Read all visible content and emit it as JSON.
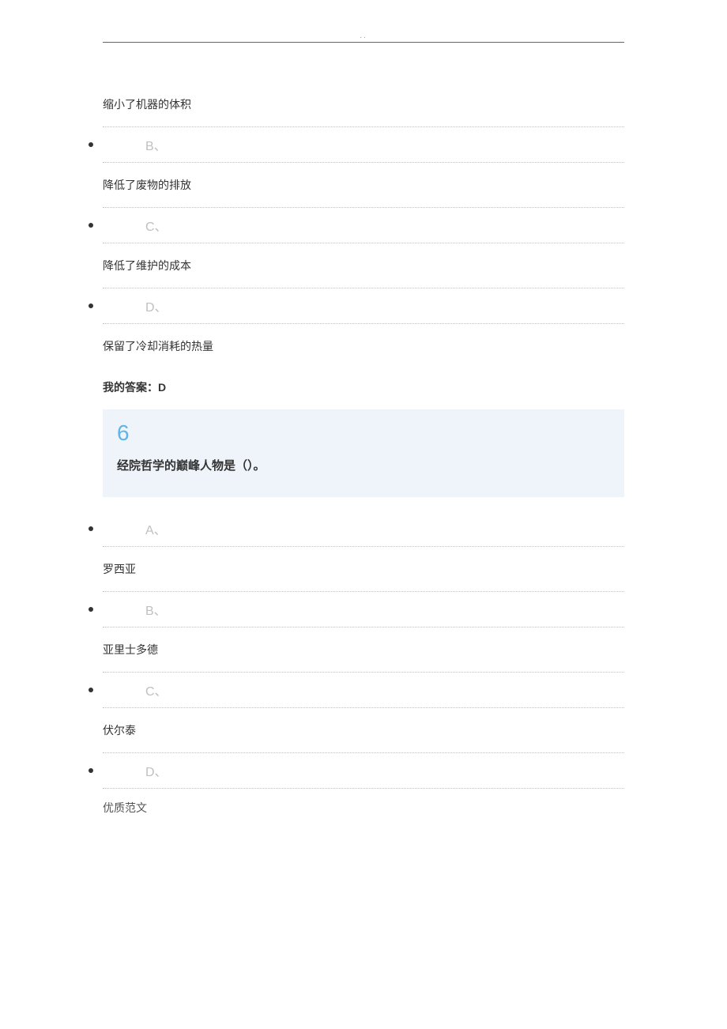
{
  "top_dots": "..",
  "question5": {
    "options": {
      "A": {
        "text": "缩小了机器的体积"
      },
      "B": {
        "letter": "B、",
        "text": "降低了废物的排放"
      },
      "C": {
        "letter": "C、",
        "text": "降低了维护的成本"
      },
      "D": {
        "letter": "D、",
        "text": "保留了冷却消耗的热量"
      }
    },
    "my_answer": "我的答案：D"
  },
  "question6": {
    "number": "6",
    "text": "经院哲学的巅峰人物是（）。",
    "options": {
      "A": {
        "letter": "A、",
        "text": "罗西亚"
      },
      "B": {
        "letter": "B、",
        "text": "亚里士多德"
      },
      "C": {
        "letter": "C、",
        "text": "伏尔泰"
      },
      "D": {
        "letter": "D、"
      }
    }
  },
  "footer": "优质范文",
  "colors": {
    "text_primary": "#333333",
    "text_muted": "#c0c0c0",
    "question_bg": "#eef4fa",
    "question_number": "#5db5e8",
    "dotted_border": "#c0c0c0",
    "top_line": "#666666"
  }
}
